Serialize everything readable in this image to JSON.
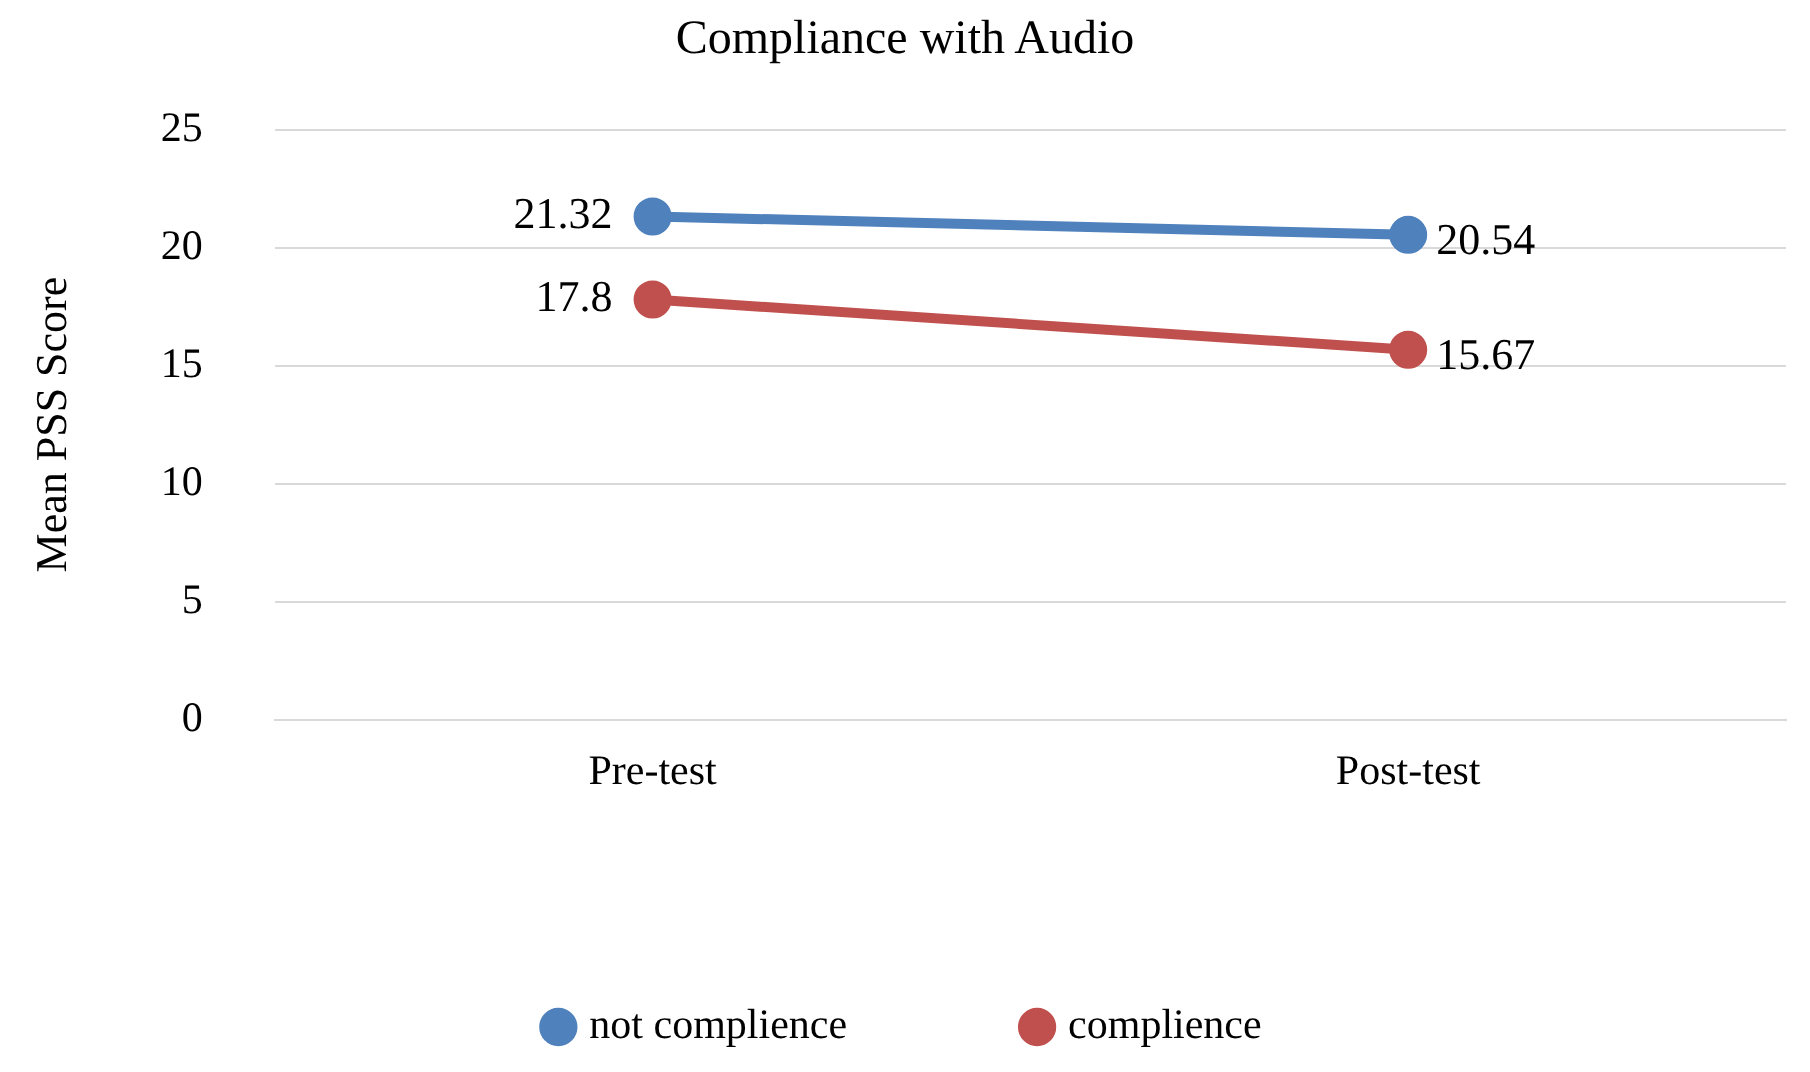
{
  "chart_data": {
    "type": "line",
    "title": "Compliance with Audio",
    "ylabel": "Mean PSS Score",
    "categories": [
      "Pre-test",
      "Post-test"
    ],
    "series": [
      {
        "name": "not complience",
        "color": "#4f81bd",
        "values": [
          21.32,
          20.54
        ]
      },
      {
        "name": "complience",
        "color": "#c0504d",
        "values": [
          17.8,
          15.67
        ]
      }
    ],
    "ylim": [
      0,
      25
    ],
    "yticks": [
      0,
      5,
      10,
      15,
      20,
      25
    ],
    "grid": "y",
    "legend": "bottom",
    "marker": "circle",
    "data_labels": true
  }
}
